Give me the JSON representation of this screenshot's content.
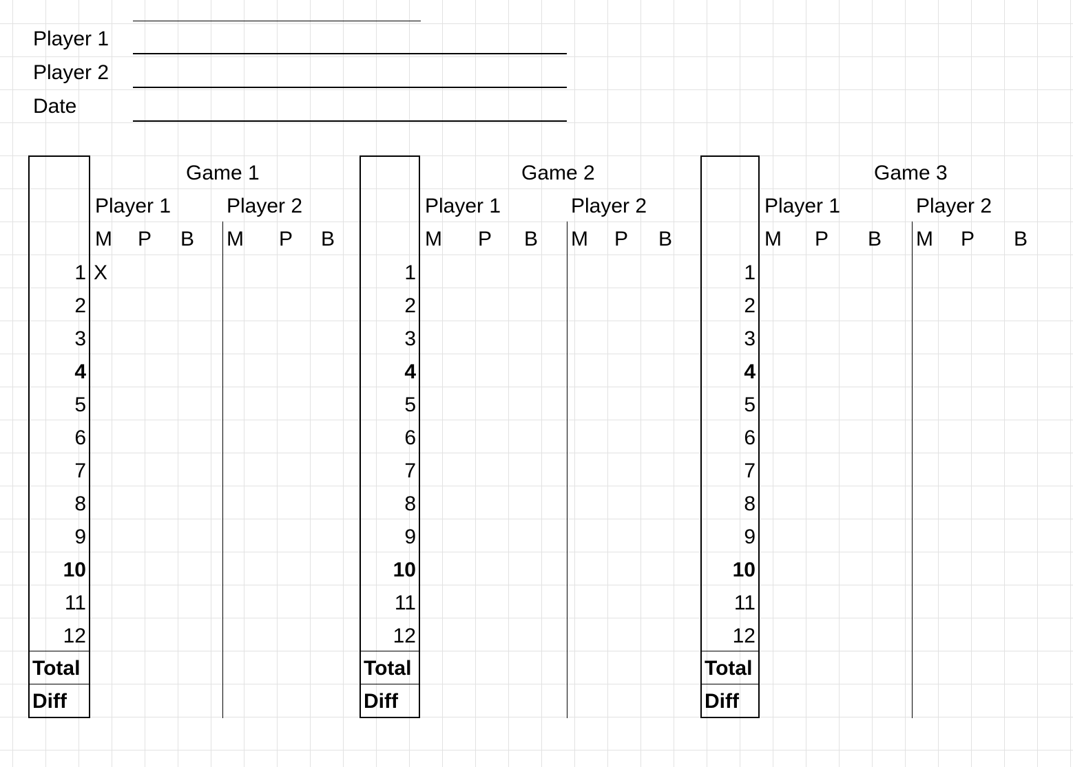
{
  "header": {
    "player1_label": "Player 1",
    "player2_label": "Player 2",
    "date_label": "Date"
  },
  "games": [
    {
      "title": "Game 1",
      "player1": "Player 1",
      "player2": "Player 2",
      "cols": [
        "M",
        "P",
        "B",
        "M",
        "P",
        "B"
      ],
      "rows": [
        "1",
        "2",
        "3",
        "4",
        "5",
        "6",
        "7",
        "8",
        "9",
        "10",
        "11",
        "12"
      ],
      "total": "Total",
      "diff": "Diff",
      "marks": {
        "row1_p1_M": "X"
      }
    },
    {
      "title": "Game 2",
      "player1": "Player 1",
      "player2": "Player 2",
      "cols": [
        "M",
        "P",
        "B",
        "M",
        "P",
        "B"
      ],
      "rows": [
        "1",
        "2",
        "3",
        "4",
        "5",
        "6",
        "7",
        "8",
        "9",
        "10",
        "11",
        "12"
      ],
      "total": "Total",
      "diff": "Diff"
    },
    {
      "title": "Game 3",
      "player1": "Player 1",
      "player2": "Player 2",
      "cols": [
        "M",
        "P",
        "B",
        "M",
        "P",
        "B"
      ],
      "rows": [
        "1",
        "2",
        "3",
        "4",
        "5",
        "6",
        "7",
        "8",
        "9",
        "10",
        "11",
        "12"
      ],
      "total": "Total",
      "diff": "Diff"
    }
  ]
}
